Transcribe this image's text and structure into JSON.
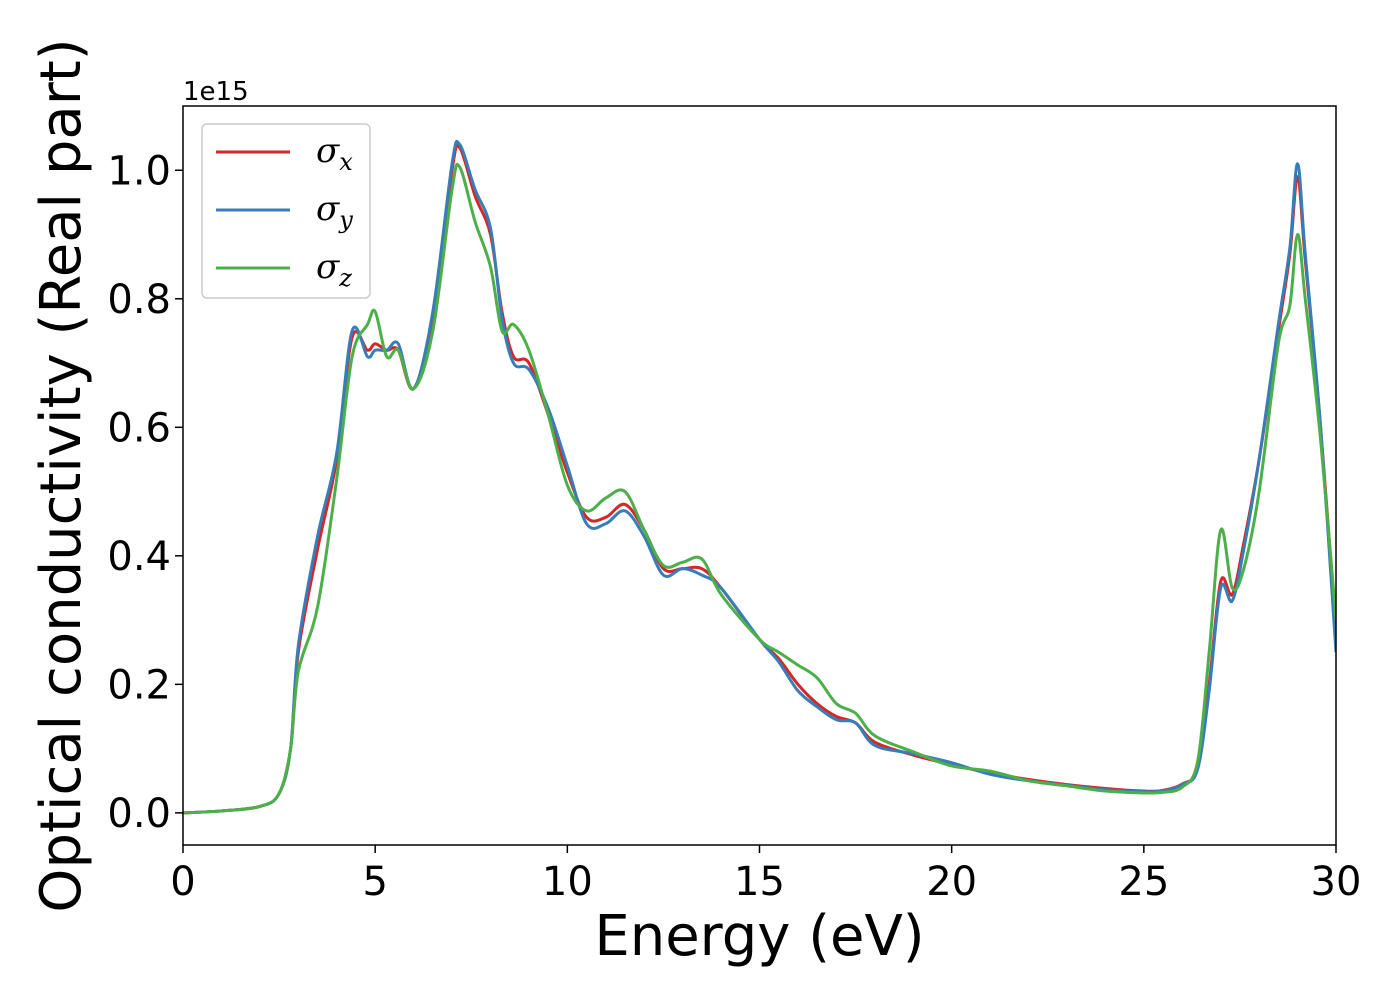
{
  "chart_data": {
    "type": "line",
    "title": "",
    "xlabel": "Energy (eV)",
    "ylabel": "Optical conductivity (Real part)",
    "xlim": [
      0,
      30
    ],
    "ylim": [
      -0.05,
      1.1
    ],
    "y_offset_label": "1e15",
    "x_ticks": [
      0,
      5,
      10,
      15,
      20,
      25,
      30
    ],
    "x_tick_labels": [
      "0",
      "5",
      "10",
      "15",
      "20",
      "25",
      "30"
    ],
    "y_ticks": [
      0.0,
      0.2,
      0.4,
      0.6,
      0.8,
      1.0
    ],
    "y_tick_labels": [
      "0.0",
      "0.2",
      "0.4",
      "0.6",
      "0.8",
      "1.0"
    ],
    "grid": false,
    "legend_position": "top-left",
    "series": [
      {
        "name": "σ",
        "subscript": "x",
        "color": "#d62728",
        "x": [
          0,
          1,
          2,
          2.5,
          2.8,
          3.0,
          3.5,
          4.0,
          4.4,
          4.8,
          5.0,
          5.3,
          5.6,
          6.0,
          6.5,
          7.0,
          7.2,
          7.6,
          8.0,
          8.3,
          8.6,
          9.0,
          9.5,
          10.0,
          10.5,
          11.0,
          11.5,
          12.0,
          12.5,
          13.0,
          13.5,
          14.0,
          15.0,
          15.5,
          16.0,
          16.5,
          17.0,
          17.5,
          18.0,
          19.0,
          20.0,
          21.0,
          22.0,
          23.0,
          24.0,
          25.0,
          25.5,
          26.0,
          26.4,
          26.7,
          27.0,
          27.3,
          27.6,
          28.0,
          28.5,
          28.8,
          29.0,
          29.2,
          29.6,
          30.0
        ],
        "values": [
          0.0,
          0.003,
          0.01,
          0.03,
          0.1,
          0.25,
          0.41,
          0.55,
          0.74,
          0.72,
          0.73,
          0.72,
          0.72,
          0.66,
          0.77,
          1.0,
          1.035,
          0.96,
          0.9,
          0.78,
          0.71,
          0.7,
          0.62,
          0.53,
          0.46,
          0.46,
          0.48,
          0.44,
          0.38,
          0.38,
          0.38,
          0.35,
          0.27,
          0.24,
          0.2,
          0.17,
          0.15,
          0.14,
          0.11,
          0.09,
          0.075,
          0.062,
          0.052,
          0.044,
          0.038,
          0.034,
          0.035,
          0.045,
          0.07,
          0.2,
          0.36,
          0.34,
          0.42,
          0.55,
          0.75,
          0.87,
          0.99,
          0.86,
          0.6,
          0.28
        ]
      },
      {
        "name": "σ",
        "subscript": "y",
        "color": "#377eb8",
        "x": [
          0,
          1,
          2,
          2.5,
          2.8,
          3.0,
          3.5,
          4.0,
          4.4,
          4.8,
          5.0,
          5.3,
          5.6,
          6.0,
          6.5,
          7.0,
          7.2,
          7.6,
          8.0,
          8.3,
          8.6,
          9.0,
          9.5,
          10.0,
          10.5,
          11.0,
          11.5,
          12.0,
          12.5,
          13.0,
          13.5,
          14.0,
          15.0,
          15.5,
          16.0,
          16.5,
          17.0,
          17.5,
          18.0,
          19.0,
          20.0,
          21.0,
          22.0,
          23.0,
          24.0,
          25.0,
          25.5,
          26.0,
          26.4,
          26.7,
          27.0,
          27.3,
          27.6,
          28.0,
          28.5,
          28.8,
          29.0,
          29.2,
          29.6,
          30.0
        ],
        "values": [
          0.0,
          0.003,
          0.01,
          0.03,
          0.1,
          0.26,
          0.43,
          0.56,
          0.75,
          0.71,
          0.72,
          0.72,
          0.73,
          0.66,
          0.78,
          1.01,
          1.04,
          0.97,
          0.91,
          0.77,
          0.7,
          0.69,
          0.63,
          0.54,
          0.45,
          0.45,
          0.47,
          0.43,
          0.37,
          0.38,
          0.37,
          0.35,
          0.27,
          0.235,
          0.19,
          0.165,
          0.145,
          0.14,
          0.105,
          0.092,
          0.078,
          0.06,
          0.05,
          0.043,
          0.036,
          0.033,
          0.034,
          0.044,
          0.068,
          0.19,
          0.35,
          0.33,
          0.41,
          0.55,
          0.76,
          0.88,
          1.01,
          0.87,
          0.6,
          0.25
        ]
      },
      {
        "name": "σ",
        "subscript": "z",
        "color": "#4daf4a",
        "x": [
          0,
          1,
          2,
          2.5,
          2.8,
          3.0,
          3.5,
          4.0,
          4.4,
          4.8,
          5.0,
          5.3,
          5.6,
          6.0,
          6.5,
          7.0,
          7.2,
          7.6,
          8.0,
          8.3,
          8.6,
          9.0,
          9.5,
          10.0,
          10.5,
          11.0,
          11.5,
          12.0,
          12.5,
          13.0,
          13.5,
          14.0,
          15.0,
          15.5,
          16.0,
          16.5,
          17.0,
          17.5,
          18.0,
          19.0,
          20.0,
          21.0,
          22.0,
          23.0,
          24.0,
          25.0,
          25.5,
          26.0,
          26.4,
          26.7,
          27.0,
          27.3,
          27.6,
          28.0,
          28.5,
          28.8,
          29.0,
          29.2,
          29.6,
          30.0
        ],
        "values": [
          0.0,
          0.003,
          0.01,
          0.03,
          0.1,
          0.22,
          0.32,
          0.52,
          0.71,
          0.76,
          0.78,
          0.71,
          0.72,
          0.66,
          0.75,
          0.97,
          1.005,
          0.92,
          0.85,
          0.75,
          0.76,
          0.72,
          0.62,
          0.51,
          0.47,
          0.49,
          0.5,
          0.44,
          0.385,
          0.39,
          0.395,
          0.34,
          0.27,
          0.25,
          0.23,
          0.21,
          0.17,
          0.155,
          0.12,
          0.095,
          0.073,
          0.065,
          0.05,
          0.042,
          0.034,
          0.031,
          0.032,
          0.04,
          0.08,
          0.25,
          0.44,
          0.35,
          0.38,
          0.5,
          0.73,
          0.79,
          0.9,
          0.8,
          0.58,
          0.3
        ]
      }
    ]
  }
}
